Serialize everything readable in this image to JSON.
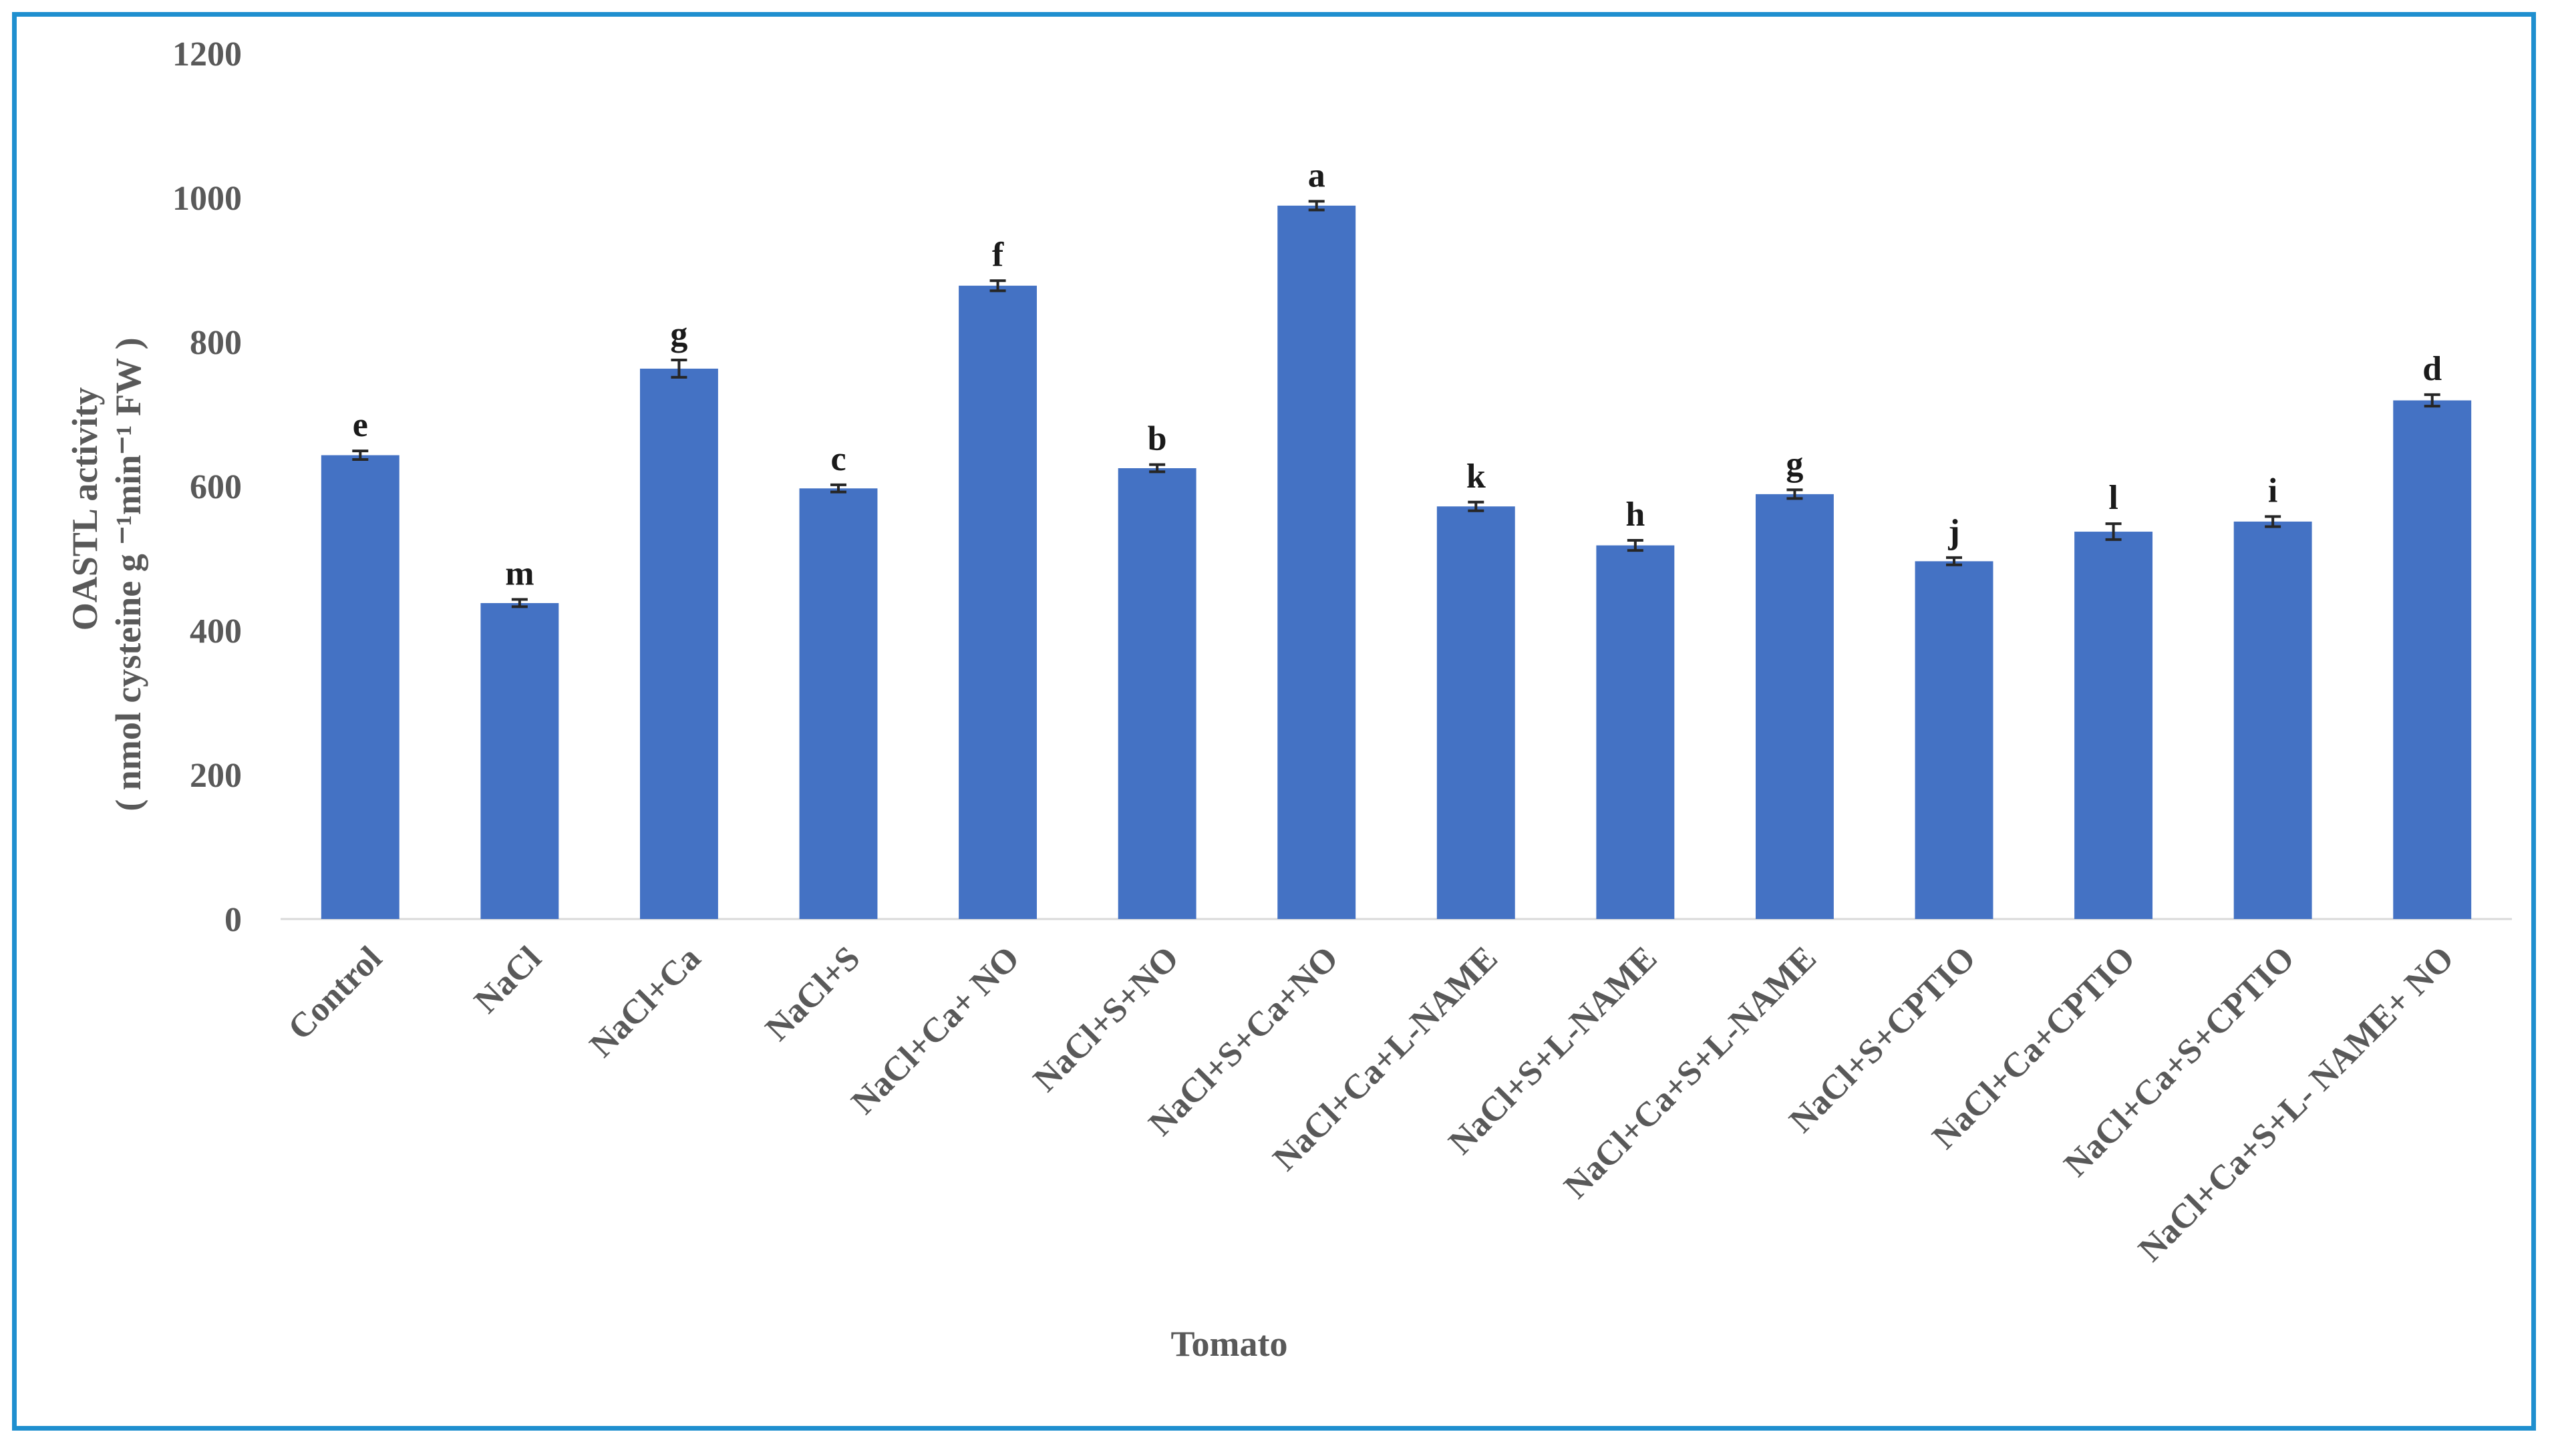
{
  "chart_data": {
    "type": "bar",
    "title": "",
    "xlabel": "Tomato",
    "ylabel_line1": "OASTL activity",
    "ylabel_line2": "( nmol cysteine g ⁻¹min⁻¹ FW )",
    "ylim": [
      0,
      1200
    ],
    "yticks": [
      0,
      200,
      400,
      600,
      800,
      1000,
      1200
    ],
    "grid": false,
    "legend": "none",
    "bar_color": "#4472c4",
    "categories": [
      "Control",
      "NaCl",
      "NaCl+Ca",
      "NaCl+S",
      "NaCl+Ca+ NO",
      "NaCl+S+NO",
      "NaCl+S+Ca+NO",
      "NaCl+Ca+L-NAME",
      "NaCl+S+L-NAME",
      "NaCl+Ca+S+L-NAME",
      "NaCl+S+CPTIO",
      "NaCl+Ca+CPTIO",
      "NaCl+Ca+S+CPTIO",
      "NaCl+Ca+S+L- NAME+ NO"
    ],
    "values": [
      643,
      438,
      763,
      597,
      878,
      625,
      989,
      572,
      518,
      589,
      496,
      537,
      551,
      719
    ],
    "errors": [
      6,
      5,
      12,
      5,
      7,
      5,
      6,
      6,
      7,
      6,
      5,
      11,
      7,
      8
    ],
    "significance_letters": [
      "e",
      "m",
      "g",
      "c",
      "f",
      "b",
      "a",
      "k",
      "h",
      "g",
      "j",
      "l",
      "i",
      "d"
    ]
  }
}
